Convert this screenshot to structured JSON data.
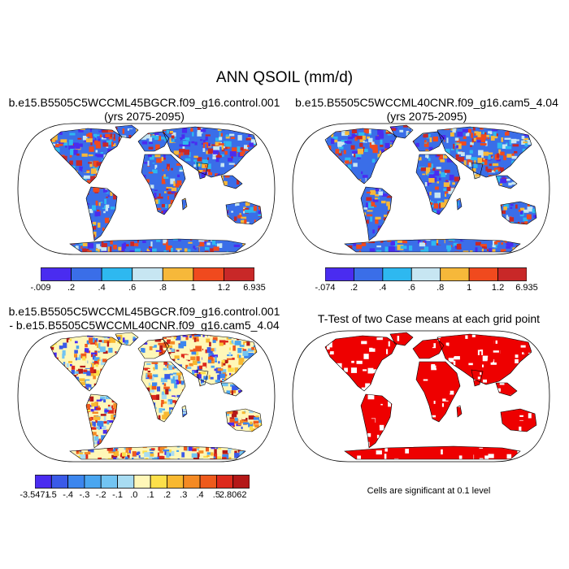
{
  "title": "ANN QSOIL (mm/d)",
  "panels": {
    "top_left": {
      "title_line1": "b.e15.B5505C5WCCML45BGCR.f09_g16.control.001",
      "title_line2": "(yrs 2075-2095)",
      "colorbar": {
        "labels": [
          "-.009",
          ".2",
          ".4",
          ".6",
          ".8",
          "1",
          "1.2",
          "6.935"
        ],
        "colors": [
          "#4a2cf0",
          "#3a6ee8",
          "#2eb8f0",
          "#c7e6f2",
          "#f6b83a",
          "#f04a1e",
          "#c82828"
        ]
      }
    },
    "top_right": {
      "title_line1": "b.e15.B5505C5WCCML40CNR.f09_g16.cam5_4.04",
      "title_line2": "(yrs 2075-2095)",
      "colorbar": {
        "labels": [
          "-.074",
          ".2",
          ".4",
          ".6",
          ".8",
          "1",
          "1.2",
          "6.935"
        ],
        "colors": [
          "#4a2cf0",
          "#3a6ee8",
          "#2eb8f0",
          "#c7e6f2",
          "#f6b83a",
          "#f04a1e",
          "#c82828"
        ]
      }
    },
    "bottom_left": {
      "title_line1": "b.e15.B5505C5WCCML45BGCR.f09_g16.control.001",
      "title_line2": "- b.e15.B5505C5WCCML40CNR.f09_g16.cam5_4.04",
      "colorbar": {
        "labels": [
          "-3.5471",
          "-.5",
          "-.4",
          "-.3",
          "-.2",
          "-.1",
          ".0",
          ".1",
          ".2",
          ".3",
          ".4",
          ".5",
          "2.8062"
        ],
        "colors": [
          "#4a2cf0",
          "#3a5ae8",
          "#3c86ee",
          "#4aa6f0",
          "#72c4f2",
          "#a8dcf2",
          "#fff7b8",
          "#fde04a",
          "#f8b830",
          "#f48a24",
          "#ee5a1c",
          "#dd2a1c",
          "#b41818"
        ]
      }
    },
    "bottom_right": {
      "title": "T-Test of two Case means at each grid point",
      "note": "Cells are significant at 0.1 level",
      "colors": {
        "significant": "#ee0000"
      }
    }
  }
}
